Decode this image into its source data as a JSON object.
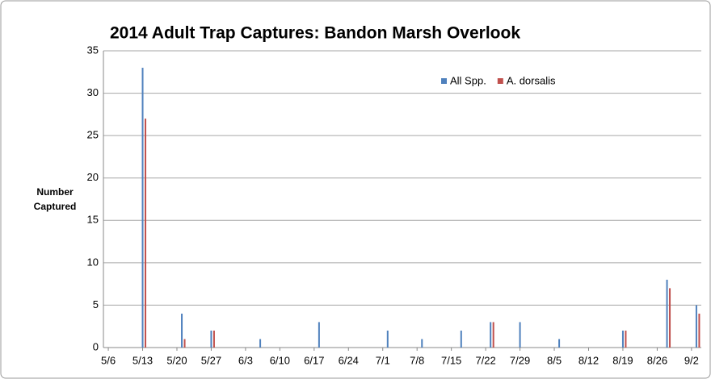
{
  "chart_data": {
    "type": "bar",
    "title": "2014 Adult Trap Captures: Bandon Marsh Overlook",
    "ylabel_lines": [
      "Number",
      "Captured"
    ],
    "x": [
      "5/13",
      "5/21",
      "5/27",
      "6/6",
      "6/18",
      "7/2",
      "7/9",
      "7/17",
      "7/23",
      "7/29",
      "8/6",
      "8/19",
      "8/28",
      "9/3"
    ],
    "series": [
      {
        "name": "All Spp.",
        "color": "#4f81bd",
        "values": [
          33,
          4,
          2,
          1,
          3,
          2,
          1,
          2,
          3,
          3,
          1,
          2,
          8,
          5
        ]
      },
      {
        "name": "A. dorsalis",
        "color": "#c0504d",
        "values": [
          27,
          1,
          2,
          0,
          0,
          0,
          0,
          0,
          3,
          0,
          0,
          2,
          7,
          4
        ]
      }
    ],
    "xlim": [
      "5/5",
      "9/4"
    ],
    "xticks": [
      "5/6",
      "5/13",
      "5/20",
      "5/27",
      "6/3",
      "6/10",
      "6/17",
      "6/24",
      "7/1",
      "7/8",
      "7/15",
      "7/22",
      "7/29",
      "8/5",
      "8/12",
      "8/19",
      "8/26",
      "9/2"
    ],
    "ylim": [
      0,
      35
    ],
    "yticks": [
      0,
      5,
      10,
      15,
      20,
      25,
      30,
      35
    ],
    "grid": true,
    "legend": "top-right"
  }
}
